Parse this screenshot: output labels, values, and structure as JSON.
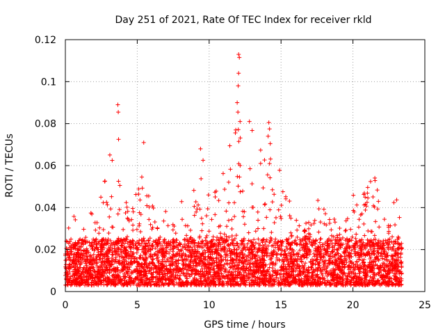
{
  "chart_data": {
    "type": "scatter",
    "title": "Day 251 of 2021, Rate Of TEC Index for receiver rkld",
    "xlabel": "GPS time / hours",
    "ylabel": "ROTI / TECUs",
    "xlim": [
      0,
      25
    ],
    "ylim": [
      0,
      0.12
    ],
    "x_ticks": [
      "0",
      "5",
      "10",
      "15",
      "20",
      "25"
    ],
    "y_ticks": [
      "0",
      "0.02",
      "0.04",
      "0.06",
      "0.08",
      "0.1",
      "0.12"
    ],
    "x_tick_values": [
      0,
      5,
      10,
      15,
      20,
      25
    ],
    "y_tick_values": [
      0,
      0.02,
      0.04,
      0.06,
      0.08,
      0.1,
      0.12
    ],
    "grid": true,
    "marker": "+",
    "series": [
      {
        "name": "ROTI",
        "color": "#ff0000",
        "time_range_hours": [
          0.0,
          23.4
        ],
        "baseline_range": [
          0.003,
          0.025
        ],
        "envelope": {
          "t": [
            0.0,
            0.5,
            1.0,
            1.5,
            2.0,
            2.5,
            3.0,
            3.5,
            4.0,
            4.5,
            5.0,
            5.5,
            6.0,
            6.5,
            7.0,
            7.5,
            8.0,
            8.5,
            9.0,
            9.5,
            10.0,
            10.5,
            11.0,
            11.5,
            12.0,
            12.5,
            13.0,
            13.5,
            14.0,
            14.5,
            15.0,
            15.5,
            16.0,
            16.5,
            17.0,
            17.5,
            18.0,
            18.5,
            19.0,
            19.5,
            20.0,
            20.5,
            21.0,
            21.5,
            22.0,
            22.5,
            23.0,
            23.4
          ],
          "max": [
            0.024,
            0.04,
            0.038,
            0.03,
            0.045,
            0.052,
            0.065,
            0.072,
            0.055,
            0.042,
            0.05,
            0.07,
            0.046,
            0.038,
            0.04,
            0.036,
            0.042,
            0.048,
            0.052,
            0.066,
            0.045,
            0.05,
            0.064,
            0.082,
            0.082,
            0.062,
            0.08,
            0.07,
            0.08,
            0.062,
            0.06,
            0.045,
            0.036,
            0.03,
            0.042,
            0.046,
            0.044,
            0.038,
            0.03,
            0.035,
            0.048,
            0.045,
            0.05,
            0.056,
            0.042,
            0.04,
            0.047,
            0.048
          ]
        },
        "outliers": [
          {
            "x": 3.65,
            "y": 0.089
          },
          {
            "x": 3.68,
            "y": 0.0855
          },
          {
            "x": 3.7,
            "y": 0.0725
          },
          {
            "x": 5.45,
            "y": 0.071
          },
          {
            "x": 9.4,
            "y": 0.068
          },
          {
            "x": 12.05,
            "y": 0.113
          },
          {
            "x": 12.1,
            "y": 0.1115
          },
          {
            "x": 12.05,
            "y": 0.104
          },
          {
            "x": 12.02,
            "y": 0.098
          },
          {
            "x": 11.95,
            "y": 0.09
          },
          {
            "x": 12.0,
            "y": 0.0855
          },
          {
            "x": 12.15,
            "y": 0.081
          },
          {
            "x": 12.8,
            "y": 0.081
          },
          {
            "x": 14.15,
            "y": 0.0805
          },
          {
            "x": 14.2,
            "y": 0.0775
          },
          {
            "x": 14.25,
            "y": 0.0705
          },
          {
            "x": 14.1,
            "y": 0.074
          }
        ]
      }
    ]
  }
}
